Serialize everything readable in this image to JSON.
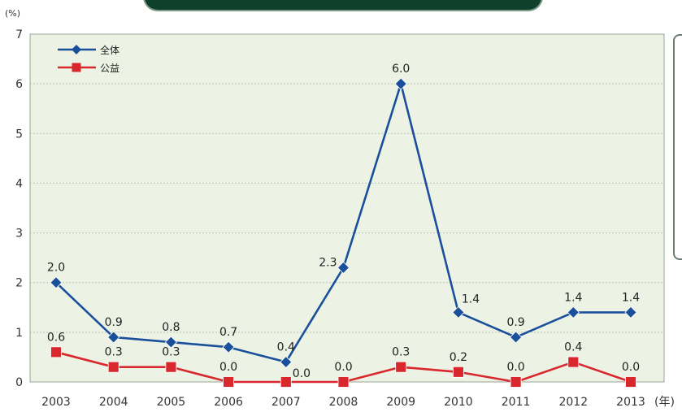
{
  "chart_data": {
    "type": "line",
    "x": [
      "2003",
      "2004",
      "2005",
      "2006",
      "2007",
      "2008",
      "2009",
      "2010",
      "2011",
      "2012",
      "2013"
    ],
    "series": [
      {
        "name": "全体",
        "color": "#1a4f9c",
        "values": [
          2.0,
          0.9,
          0.8,
          0.7,
          0.4,
          2.3,
          6.0,
          1.4,
          0.9,
          1.4,
          1.4
        ],
        "labels": [
          "2.0",
          "0.9",
          "0.8",
          "0.7",
          "0.4",
          "2.3",
          "6.0",
          "1.4",
          "0.9",
          "1.4",
          "1.4"
        ]
      },
      {
        "name": "公益",
        "color": "#d9272e",
        "values": [
          0.6,
          0.3,
          0.3,
          0.0,
          0.0,
          0.0,
          0.3,
          0.2,
          0.0,
          0.4,
          0.0
        ],
        "labels": [
          "0.6",
          "0.3",
          "0.3",
          "0.0",
          "0.0",
          "0.0",
          "0.3",
          "0.2",
          "0.0",
          "0.4",
          "0.0"
        ]
      }
    ],
    "y_unit": "(%)",
    "x_unit": "(年)",
    "ylim": [
      0,
      7
    ],
    "yticks": [
      "0",
      "1",
      "2",
      "3",
      "4",
      "5",
      "6",
      "7"
    ],
    "grid": true,
    "legend_position": "top-left",
    "plot_background": "#edf3e4"
  }
}
